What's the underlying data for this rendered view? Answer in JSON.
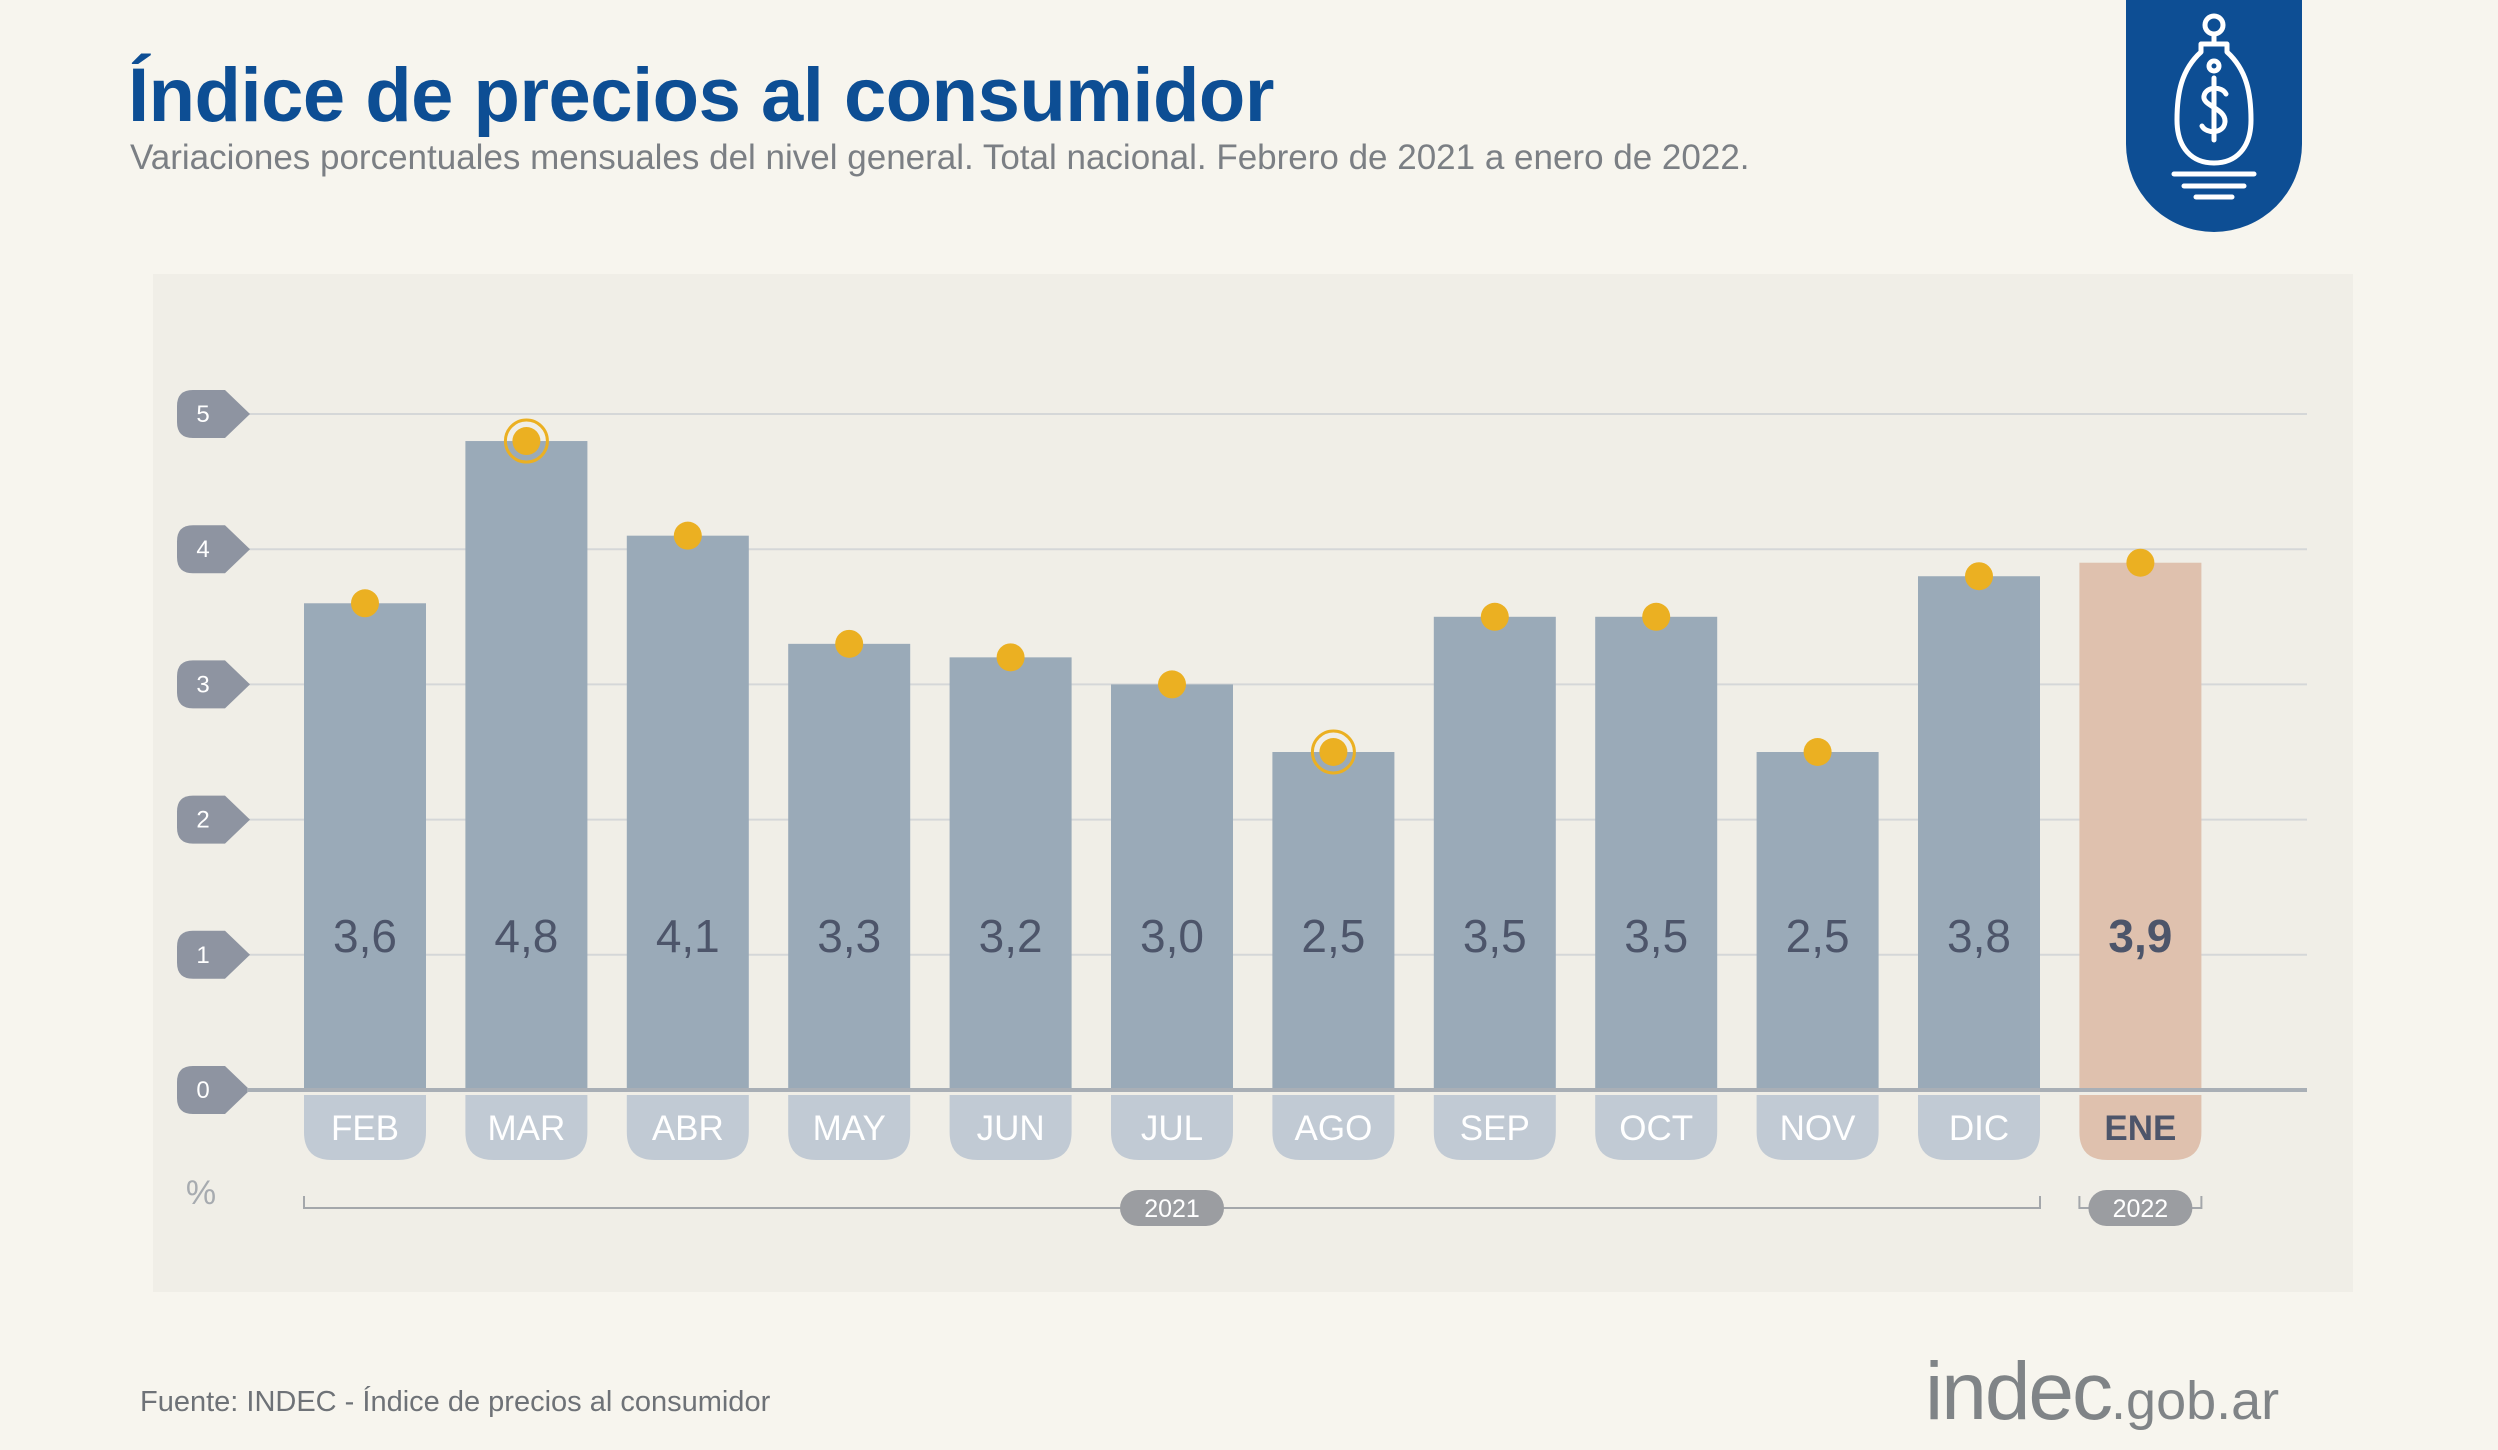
{
  "header": {
    "title": "Índice de precios al consumidor",
    "subtitle": "Variaciones porcentuales mensuales del nivel general. Total nacional. Febrero de 2021 a enero de 2022."
  },
  "badge": {
    "icon": "price-tag-dollar-icon",
    "color": "#0d4e94"
  },
  "chart_data": {
    "type": "bar",
    "title": "Índice de precios al consumidor",
    "ylabel": "%",
    "ylim": [
      0,
      5
    ],
    "yticks": [
      "0",
      "1",
      "2",
      "3",
      "4",
      "5"
    ],
    "categories": [
      "FEB",
      "MAR",
      "ABR",
      "MAY",
      "JUN",
      "JUL",
      "AGO",
      "SEP",
      "OCT",
      "NOV",
      "DIC",
      "ENE"
    ],
    "values": [
      3.6,
      4.8,
      4.1,
      3.3,
      3.2,
      3.0,
      2.5,
      3.5,
      3.5,
      2.5,
      3.8,
      3.9
    ],
    "value_labels": [
      "3,6",
      "4,8",
      "4,1",
      "3,3",
      "3,2",
      "3,0",
      "2,5",
      "3,5",
      "3,5",
      "2,5",
      "3,8",
      "3,9"
    ],
    "highlight_max": "MAR",
    "highlight_min": "AGO",
    "grid": true,
    "years": [
      {
        "label": "2021",
        "from": 0,
        "to": 10
      },
      {
        "label": "2022",
        "from": 11,
        "to": 11
      }
    ],
    "colors": {
      "bar": "#9aaab8",
      "bar_current": "#dfc1ae",
      "dot": "#ebb022",
      "label": "#4d556a",
      "month_pill": "#c1cad4",
      "month_pill_current": "#dfc1ae",
      "axis_pill": "#8e94a1",
      "year_pill": "#9b9da1"
    }
  },
  "footer": {
    "source": "Fuente: INDEC - Índice de precios al consumidor",
    "brand": "indec",
    "brand_suffix": ".gob.ar"
  }
}
